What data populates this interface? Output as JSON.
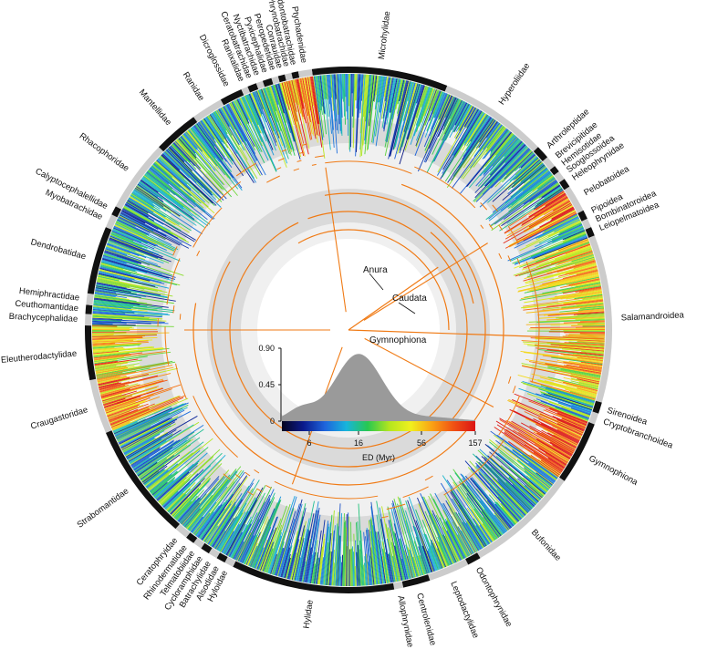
{
  "tree": {
    "inner_labels": [
      {
        "id": "anura",
        "text": "Anura"
      },
      {
        "id": "caudata",
        "text": "Caudata"
      },
      {
        "id": "gymnophiona",
        "text": "Gymnophiona"
      }
    ],
    "clades": [
      {
        "name": "Microhylidae",
        "start": -8,
        "end": 22
      },
      {
        "name": "Hyperoliidae",
        "start": 22,
        "end": 46
      },
      {
        "name": "Arthroleptidae",
        "start": 46,
        "end": 49
      },
      {
        "name": "Brevicipitidae",
        "start": 49,
        "end": 51.5
      },
      {
        "name": "Hemisotidae",
        "start": 51.5,
        "end": 53
      },
      {
        "name": "Sooglossoidea",
        "start": 53,
        "end": 55
      },
      {
        "name": "Heleophrynidae",
        "start": 55,
        "end": 57
      },
      {
        "name": "Pelobatoidea",
        "start": 57,
        "end": 63
      },
      {
        "name": "Pipoidea",
        "start": 63,
        "end": 65
      },
      {
        "name": "Bombinatoroidea",
        "start": 65,
        "end": 67
      },
      {
        "name": "Leiopelmatoidea",
        "start": 67,
        "end": 69
      },
      {
        "name": "Salamandroidea",
        "start": 69,
        "end": 106
      },
      {
        "name": "Sirenoidea",
        "start": 106,
        "end": 108.5
      },
      {
        "name": "Cryptobranchoidea",
        "start": 108.5,
        "end": 111
      },
      {
        "name": "Gymnophiona",
        "start": 111,
        "end": 125
      },
      {
        "name": "Bufonidae",
        "start": 125,
        "end": 150
      },
      {
        "name": "Odontophrynidae",
        "start": 150,
        "end": 153
      },
      {
        "name": "Leptodactylidae",
        "start": 153,
        "end": 162
      },
      {
        "name": "Centrolenidae",
        "start": 162,
        "end": 168
      },
      {
        "name": "Allophrynidae",
        "start": 168,
        "end": 170
      },
      {
        "name": "Hylidae",
        "start": 170,
        "end": 206
      },
      {
        "name": "Hyloidae",
        "start": 206,
        "end": 208
      },
      {
        "name": "Alsodidae",
        "start": 208,
        "end": 210
      },
      {
        "name": "Batrachylidae",
        "start": 210,
        "end": 212
      },
      {
        "name": "Cycloramphidae",
        "start": 212,
        "end": 214
      },
      {
        "name": "Telmatobiidae",
        "start": 214,
        "end": 216
      },
      {
        "name": "Rhinodermatidae",
        "start": 216,
        "end": 218
      },
      {
        "name": "Ceratophryidae",
        "start": 218,
        "end": 221
      },
      {
        "name": "Strabomantidae",
        "start": 221,
        "end": 247
      },
      {
        "name": "Craugastoridae",
        "start": 247,
        "end": 259
      },
      {
        "name": "Eleutherodactylidae",
        "start": 259,
        "end": 271
      },
      {
        "name": "Brachycephalidae",
        "start": 271,
        "end": 273.5
      },
      {
        "name": "Ceuthomantidae",
        "start": 273.5,
        "end": 275.5
      },
      {
        "name": "Hemiphractidae",
        "start": 275.5,
        "end": 278
      },
      {
        "name": "Dendrobatidae",
        "start": 278,
        "end": 293
      },
      {
        "name": "Myobatrachidae",
        "start": 293,
        "end": 296
      },
      {
        "name": "Calyptocephalellidae",
        "start": 296,
        "end": 298
      },
      {
        "name": "Rhacophoridae",
        "start": 298,
        "end": 314
      },
      {
        "name": "Mantellidae",
        "start": 314,
        "end": 324
      },
      {
        "name": "Ranidae",
        "start": 324,
        "end": 331
      },
      {
        "name": "Dicroglossidae",
        "start": 331,
        "end": 336
      },
      {
        "name": "Ranixalidae",
        "start": 336,
        "end": 337.5
      },
      {
        "name": "Ceratobatrachidae",
        "start": 337.5,
        "end": 339.5
      },
      {
        "name": "Nyctibatrachidae",
        "start": 339.5,
        "end": 341
      },
      {
        "name": "Pyxicephalidae",
        "start": 341,
        "end": 343
      },
      {
        "name": "Petropedetidae",
        "start": 343,
        "end": 344.5
      },
      {
        "name": "Conrauidae",
        "start": 344.5,
        "end": 346
      },
      {
        "name": "Phrynobatrachidae",
        "start": 346,
        "end": 347.5
      },
      {
        "name": "Odontobatrachidae",
        "start": 347.5,
        "end": 349
      },
      {
        "name": "Ptychadenidae",
        "start": 349,
        "end": 352
      }
    ]
  },
  "inset_chart": {
    "yticks": [
      "0.90",
      "0.45",
      "0"
    ],
    "xticks": [
      "6",
      "16",
      "56",
      "157"
    ],
    "xlabel": "ED (Myr)",
    "colorbar_colors": [
      "#05051e",
      "#0a1a8c",
      "#1e64dc",
      "#18b4dc",
      "#28c850",
      "#b4e61e",
      "#f0f01e",
      "#faa014",
      "#f05014",
      "#dc1414"
    ]
  },
  "colors": {
    "ring_black": "#111111",
    "ring_gray": "#cccccc",
    "band_light": "#f0f0f0",
    "band_dark": "#dadada",
    "backbone": "#f07a14",
    "density_fill": "#9a9a9a"
  }
}
